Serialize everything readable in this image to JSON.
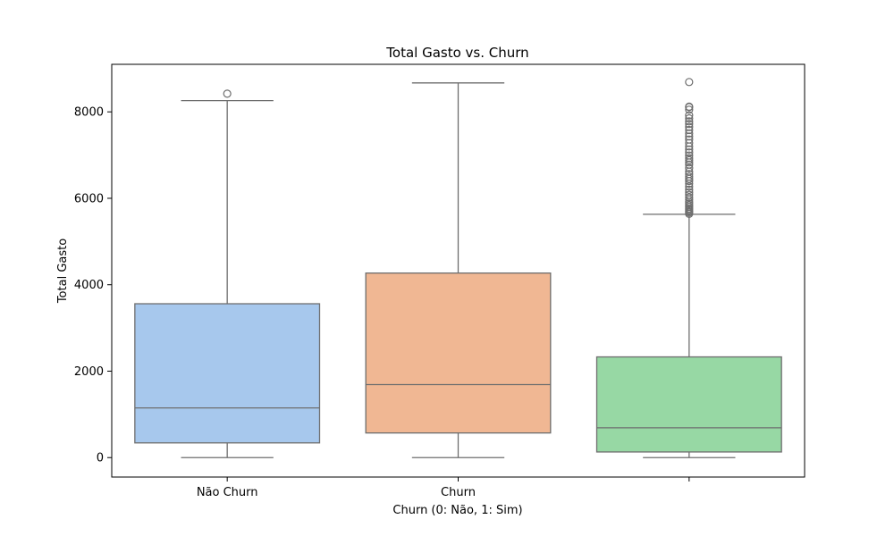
{
  "chart_data": {
    "type": "boxplot",
    "title": "Total Gasto vs. Churn",
    "xlabel": "Churn (0: Não, 1: Sim)",
    "ylabel": "Total Gasto",
    "categories": [
      "Não Churn",
      "Churn",
      ""
    ],
    "ylim": [
      -450,
      9100
    ],
    "yticks": [
      0,
      2000,
      4000,
      6000,
      8000
    ],
    "grid": false,
    "boxes": [
      {
        "category": "Não Churn",
        "color": "#a7c8ed",
        "whisker_low": 0,
        "q1": 340,
        "median": 1150,
        "q3": 3560,
        "whisker_high": 8260,
        "outliers": [
          8420
        ]
      },
      {
        "category": "Churn",
        "color": "#f0b793",
        "whisker_low": 0,
        "q1": 570,
        "median": 1690,
        "q3": 4270,
        "whisker_high": 8670,
        "outliers": []
      },
      {
        "category": "",
        "color": "#97d8a4",
        "whisker_low": 0,
        "q1": 130,
        "median": 690,
        "q3": 2330,
        "whisker_high": 5630,
        "outliers": [
          5640,
          5670,
          5700,
          5730,
          5760,
          5800,
          5840,
          5880,
          5920,
          5970,
          6020,
          6080,
          6140,
          6200,
          6270,
          6340,
          6400,
          6450,
          6500,
          6560,
          6620,
          6700,
          6780,
          6830,
          6880,
          6930,
          6990,
          7060,
          7130,
          7200,
          7280,
          7360,
          7430,
          7500,
          7580,
          7650,
          7720,
          7780,
          7850,
          7920,
          8050,
          8110,
          8120,
          8690
        ]
      }
    ]
  }
}
